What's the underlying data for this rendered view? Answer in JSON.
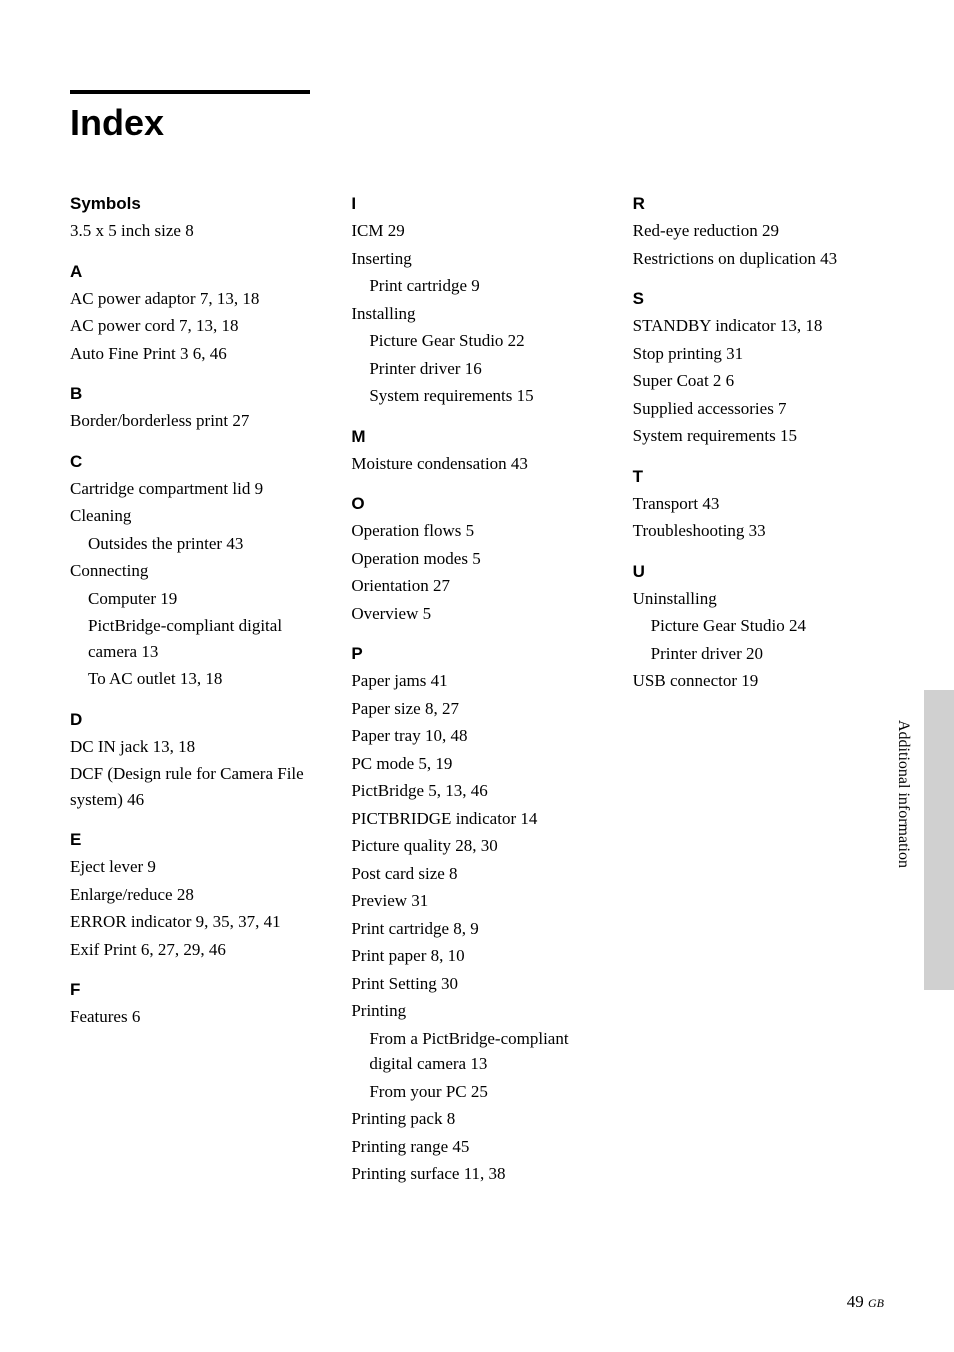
{
  "title": "Index",
  "side_label": "Additional information",
  "page_number": "49",
  "page_suffix": "GB",
  "columns": [
    {
      "sections": [
        {
          "letter": "Symbols",
          "entries": [
            {
              "text": "3.5 x 5 inch size  8"
            }
          ]
        },
        {
          "letter": "A",
          "entries": [
            {
              "text": "AC power adaptor  7,  13,  18"
            },
            {
              "text": "AC power cord  7,  13,  18"
            },
            {
              "text": "Auto Fine Print 3  6,  46"
            }
          ]
        },
        {
          "letter": "B",
          "entries": [
            {
              "text": "Border/borderless print  27"
            }
          ]
        },
        {
          "letter": "C",
          "entries": [
            {
              "text": "Cartridge compartment lid  9"
            },
            {
              "text": "Cleaning"
            },
            {
              "text": "Outsides the printer  43",
              "sub": true
            },
            {
              "text": "Connecting"
            },
            {
              "text": "Computer  19",
              "sub": true
            },
            {
              "text": "PictBridge-compliant digital camera  13",
              "sub": true
            },
            {
              "text": "To AC outlet  13,  18",
              "sub": true
            }
          ]
        },
        {
          "letter": "D",
          "entries": [
            {
              "text": "DC IN jack  13,  18"
            },
            {
              "text": "DCF (Design rule for Camera File system)  46"
            }
          ]
        },
        {
          "letter": "E",
          "entries": [
            {
              "text": "Eject lever  9"
            },
            {
              "text": "Enlarge/reduce  28"
            },
            {
              "text": "ERROR indicator  9,  35,  37,  41"
            },
            {
              "text": "Exif Print  6,  27,  29,  46"
            }
          ]
        },
        {
          "letter": "F",
          "entries": [
            {
              "text": "Features  6"
            }
          ]
        }
      ]
    },
    {
      "sections": [
        {
          "letter": "I",
          "entries": [
            {
              "text": "ICM  29"
            },
            {
              "text": "Inserting"
            },
            {
              "text": "Print cartridge  9",
              "sub": true
            },
            {
              "text": "Installing"
            },
            {
              "text": "Picture Gear Studio  22",
              "sub": true
            },
            {
              "text": "Printer driver  16",
              "sub": true
            },
            {
              "text": "System requirements  15",
              "sub": true
            }
          ]
        },
        {
          "letter": "M",
          "entries": [
            {
              "text": "Moisture condensation  43"
            }
          ]
        },
        {
          "letter": "O",
          "entries": [
            {
              "text": "Operation flows  5"
            },
            {
              "text": "Operation modes  5"
            },
            {
              "text": "Orientation  27"
            },
            {
              "text": "Overview  5"
            }
          ]
        },
        {
          "letter": "P",
          "entries": [
            {
              "text": "Paper jams  41"
            },
            {
              "text": "Paper size  8,  27"
            },
            {
              "text": "Paper tray  10,  48"
            },
            {
              "text": "PC mode  5,  19"
            },
            {
              "text": "PictBridge  5,  13,  46"
            },
            {
              "text": "PICTBRIDGE indicator  14"
            },
            {
              "text": "Picture quality  28,  30"
            },
            {
              "text": "Post card size  8"
            },
            {
              "text": "Preview  31"
            },
            {
              "text": "Print cartridge  8,  9"
            },
            {
              "text": "Print paper  8,  10"
            },
            {
              "text": "Print Setting  30"
            },
            {
              "text": "Printing"
            },
            {
              "text": "From a PictBridge-compliant digital camera  13",
              "sub": true
            },
            {
              "text": "From your PC  25",
              "sub": true
            },
            {
              "text": "Printing pack  8"
            },
            {
              "text": "Printing range  45"
            },
            {
              "text": "Printing surface  11,  38"
            }
          ]
        }
      ]
    },
    {
      "sections": [
        {
          "letter": "R",
          "entries": [
            {
              "text": "Red-eye reduction  29"
            },
            {
              "text": "Restrictions on duplication  43"
            }
          ]
        },
        {
          "letter": "S",
          "entries": [
            {
              "text": "STANDBY indicator  13,  18"
            },
            {
              "text": "Stop printing  31"
            },
            {
              "text": "Super Coat 2  6"
            },
            {
              "text": "Supplied accessories  7"
            },
            {
              "text": "System requirements  15"
            }
          ]
        },
        {
          "letter": "T",
          "entries": [
            {
              "text": "Transport  43"
            },
            {
              "text": "Troubleshooting  33"
            }
          ]
        },
        {
          "letter": "U",
          "entries": [
            {
              "text": "Uninstalling"
            },
            {
              "text": "Picture Gear Studio  24",
              "sub": true
            },
            {
              "text": "Printer driver  20",
              "sub": true
            },
            {
              "text": "USB connector  19"
            }
          ]
        }
      ]
    }
  ]
}
